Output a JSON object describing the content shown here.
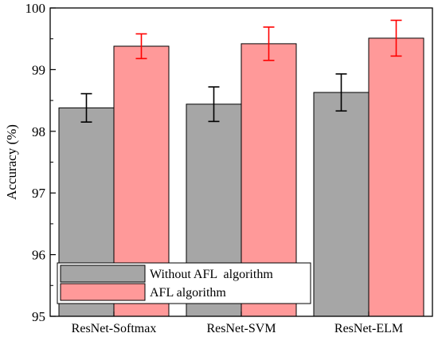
{
  "chart_data": {
    "type": "bar",
    "categories": [
      "ResNet-Softmax",
      "ResNet-SVM",
      "ResNet-ELM"
    ],
    "series": [
      {
        "name": "Without AFL  algorithm",
        "values": [
          98.38,
          98.44,
          98.63
        ],
        "errors": [
          0.23,
          0.28,
          0.3
        ],
        "color": "#a6a6a6",
        "error_color": "#000000"
      },
      {
        "name": "AFL algorithm",
        "values": [
          99.38,
          99.42,
          99.51
        ],
        "errors": [
          0.2,
          0.27,
          0.29
        ],
        "color": "#ff9999",
        "error_color": "#ff0000"
      }
    ],
    "ylabel": "Accuracy (%)",
    "ylim": [
      95,
      100
    ],
    "yticks": [
      "95",
      "96",
      "97",
      "98",
      "99",
      "100"
    ],
    "grid": false,
    "legend": "bottom-left"
  }
}
